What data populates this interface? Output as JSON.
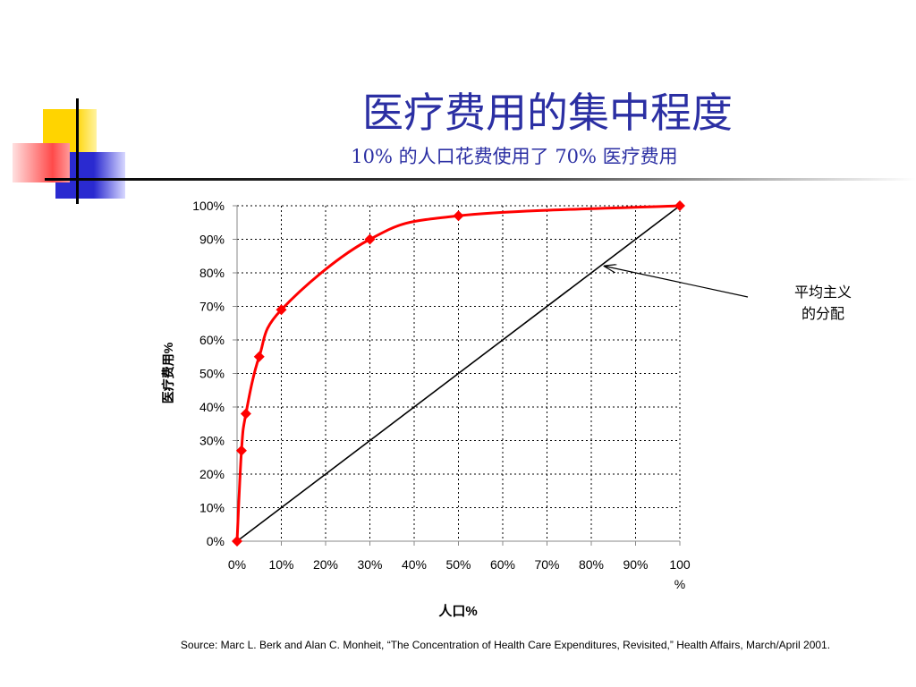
{
  "slide": {
    "title": "医疗费用的集中程度",
    "subtitle": "10% 的人口花费使用了 70% 医疗费用",
    "source_note": "Source: Marc L. Berk and Alan C. Monheit, “The Concentration of Health Care Expenditures, Revisited,” Health Affairs, March/April 2001.",
    "colors": {
      "title": "#2b2fa3",
      "deco_yellow": "#ffd400",
      "deco_red": "#ff5a5a",
      "deco_blue": "#2a2ad0",
      "curve": "#ff0000",
      "equality_line": "#000000"
    }
  },
  "chart_data": {
    "type": "line",
    "xlabel": "人口%",
    "ylabel": "医疗费用%",
    "xlim": [
      0,
      100
    ],
    "ylim": [
      0,
      100
    ],
    "x_ticks": [
      "0%",
      "10%",
      "20%",
      "30%",
      "40%",
      "50%",
      "60%",
      "70%",
      "80%",
      "90%",
      "100%"
    ],
    "y_ticks": [
      "0%",
      "10%",
      "20%",
      "30%",
      "40%",
      "50%",
      "60%",
      "70%",
      "80%",
      "90%",
      "100%"
    ],
    "grid": true,
    "series": [
      {
        "color": "#ff0000",
        "marker": "diamond",
        "smooth": true,
        "x": [
          0,
          1,
          2,
          5,
          10,
          30,
          50,
          100
        ],
        "y": [
          0,
          27,
          38,
          55,
          69,
          90,
          97,
          100
        ]
      },
      {
        "color": "#000000",
        "marker": "none",
        "x": [
          0,
          100
        ],
        "y": [
          0,
          100
        ]
      }
    ],
    "annotation": {
      "text_line1": "平均主义",
      "text_line2": "的分配",
      "points_to_x": 83,
      "points_to_y": 82
    }
  }
}
